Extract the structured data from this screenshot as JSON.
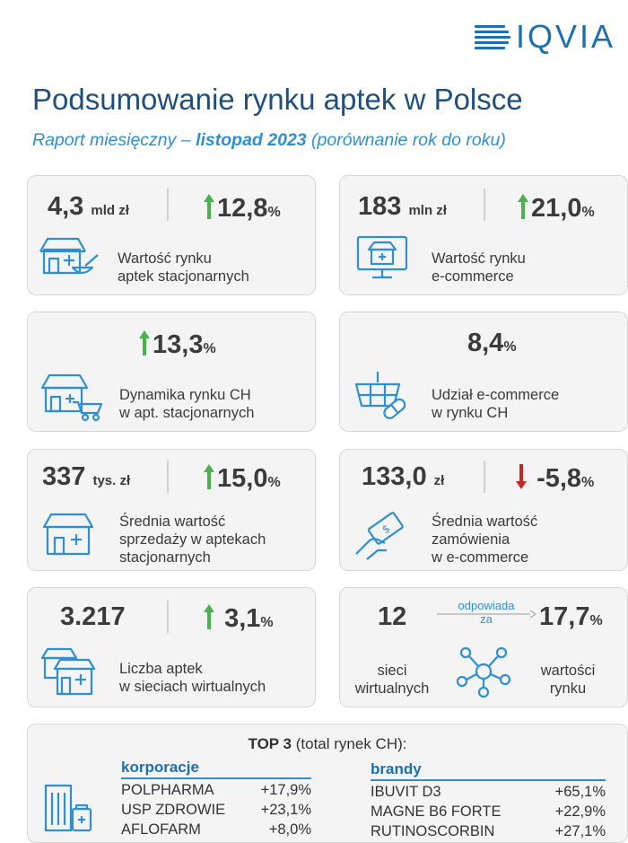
{
  "logo": {
    "text": "IQVIA"
  },
  "header": {
    "title": "Podsumowanie rynku aptek w Polsce",
    "subtitle_pre": "Raport miesięczny – ",
    "subtitle_bold": "listopad 2023",
    "subtitle_post": " (porównanie rok do roku)"
  },
  "cards": {
    "market_stationary": {
      "value": "4,3",
      "unit": "mld zł",
      "change": "12,8",
      "pct": "%",
      "trend": "up",
      "label_1": "Wartość rynku",
      "label_2": "aptek stacjonarnych",
      "icon": "pharmacy-mortar-icon"
    },
    "market_ecommerce": {
      "value": "183",
      "unit": "mln zł",
      "change": "21,0",
      "pct": "%",
      "trend": "up",
      "label_1": "Wartość rynku",
      "label_2": "e-commerce",
      "icon": "monitor-pharmacy-icon"
    },
    "ch_dynamics": {
      "change": "13,3",
      "pct": "%",
      "trend": "up",
      "label_1": "Dynamika rynku CH",
      "label_2": "w apt. stacjonarnych",
      "icon": "pharmacy-cart-icon"
    },
    "ecommerce_share": {
      "value": "8,4",
      "pct": "%",
      "label_1": "Udział e-commerce",
      "label_2": "w rynku CH",
      "icon": "basket-pill-icon"
    },
    "avg_sales": {
      "value": "337",
      "unit": "tys. zł",
      "change": "15,0",
      "pct": "%",
      "trend": "up",
      "label_1": "Średnia wartość",
      "label_2": "sprzedaży w aptekach",
      "label_3": "stacjonarnych",
      "icon": "pharmacy-icon"
    },
    "avg_order": {
      "value": "133,0",
      "unit": "zł",
      "change": "-5,8",
      "pct": "%",
      "trend": "down",
      "label_1": "Średnia wartość",
      "label_2": "zamówienia",
      "label_3": "w e-commerce",
      "icon": "hand-card-icon"
    },
    "virtual_count": {
      "value": "3.217",
      "change": "3,1",
      "pct": "%",
      "trend": "up",
      "label_1": "Liczba aptek",
      "label_2": "w sieciach wirtualnych",
      "icon": "pharmacies-icon"
    },
    "virtual_networks": {
      "value": "12",
      "link_1": "odpowiada",
      "link_2": "za",
      "share": "17,7",
      "pct": "%",
      "left_1": "sieci",
      "left_2": "wirtualnych",
      "right_1": "wartości",
      "right_2": "rynku",
      "icon": "network-icon"
    }
  },
  "top3": {
    "title_bold": "TOP 3",
    "title_rest": " (total rynek CH):",
    "icon": "pharmacy-building-icon",
    "corporations": {
      "heading": "korporacje",
      "rows": [
        {
          "name": "POLPHARMA",
          "value": "+17,9%"
        },
        {
          "name": "USP ZDROWIE",
          "value": "+23,1%"
        },
        {
          "name": "AFLOFARM",
          "value": "+8,0%"
        }
      ]
    },
    "brands": {
      "heading": "brandy",
      "rows": [
        {
          "name": "IBUVIT D3",
          "value": "+65,1%"
        },
        {
          "name": "MAGNE B6 FORTE",
          "value": "+22,9%"
        },
        {
          "name": "RUTINOSCORBIN",
          "value": "+27,1%"
        }
      ]
    }
  },
  "colors": {
    "blue": "#2f8fd1",
    "dark_blue": "#1f4f7c",
    "green": "#4caf50",
    "red": "#c62828"
  }
}
